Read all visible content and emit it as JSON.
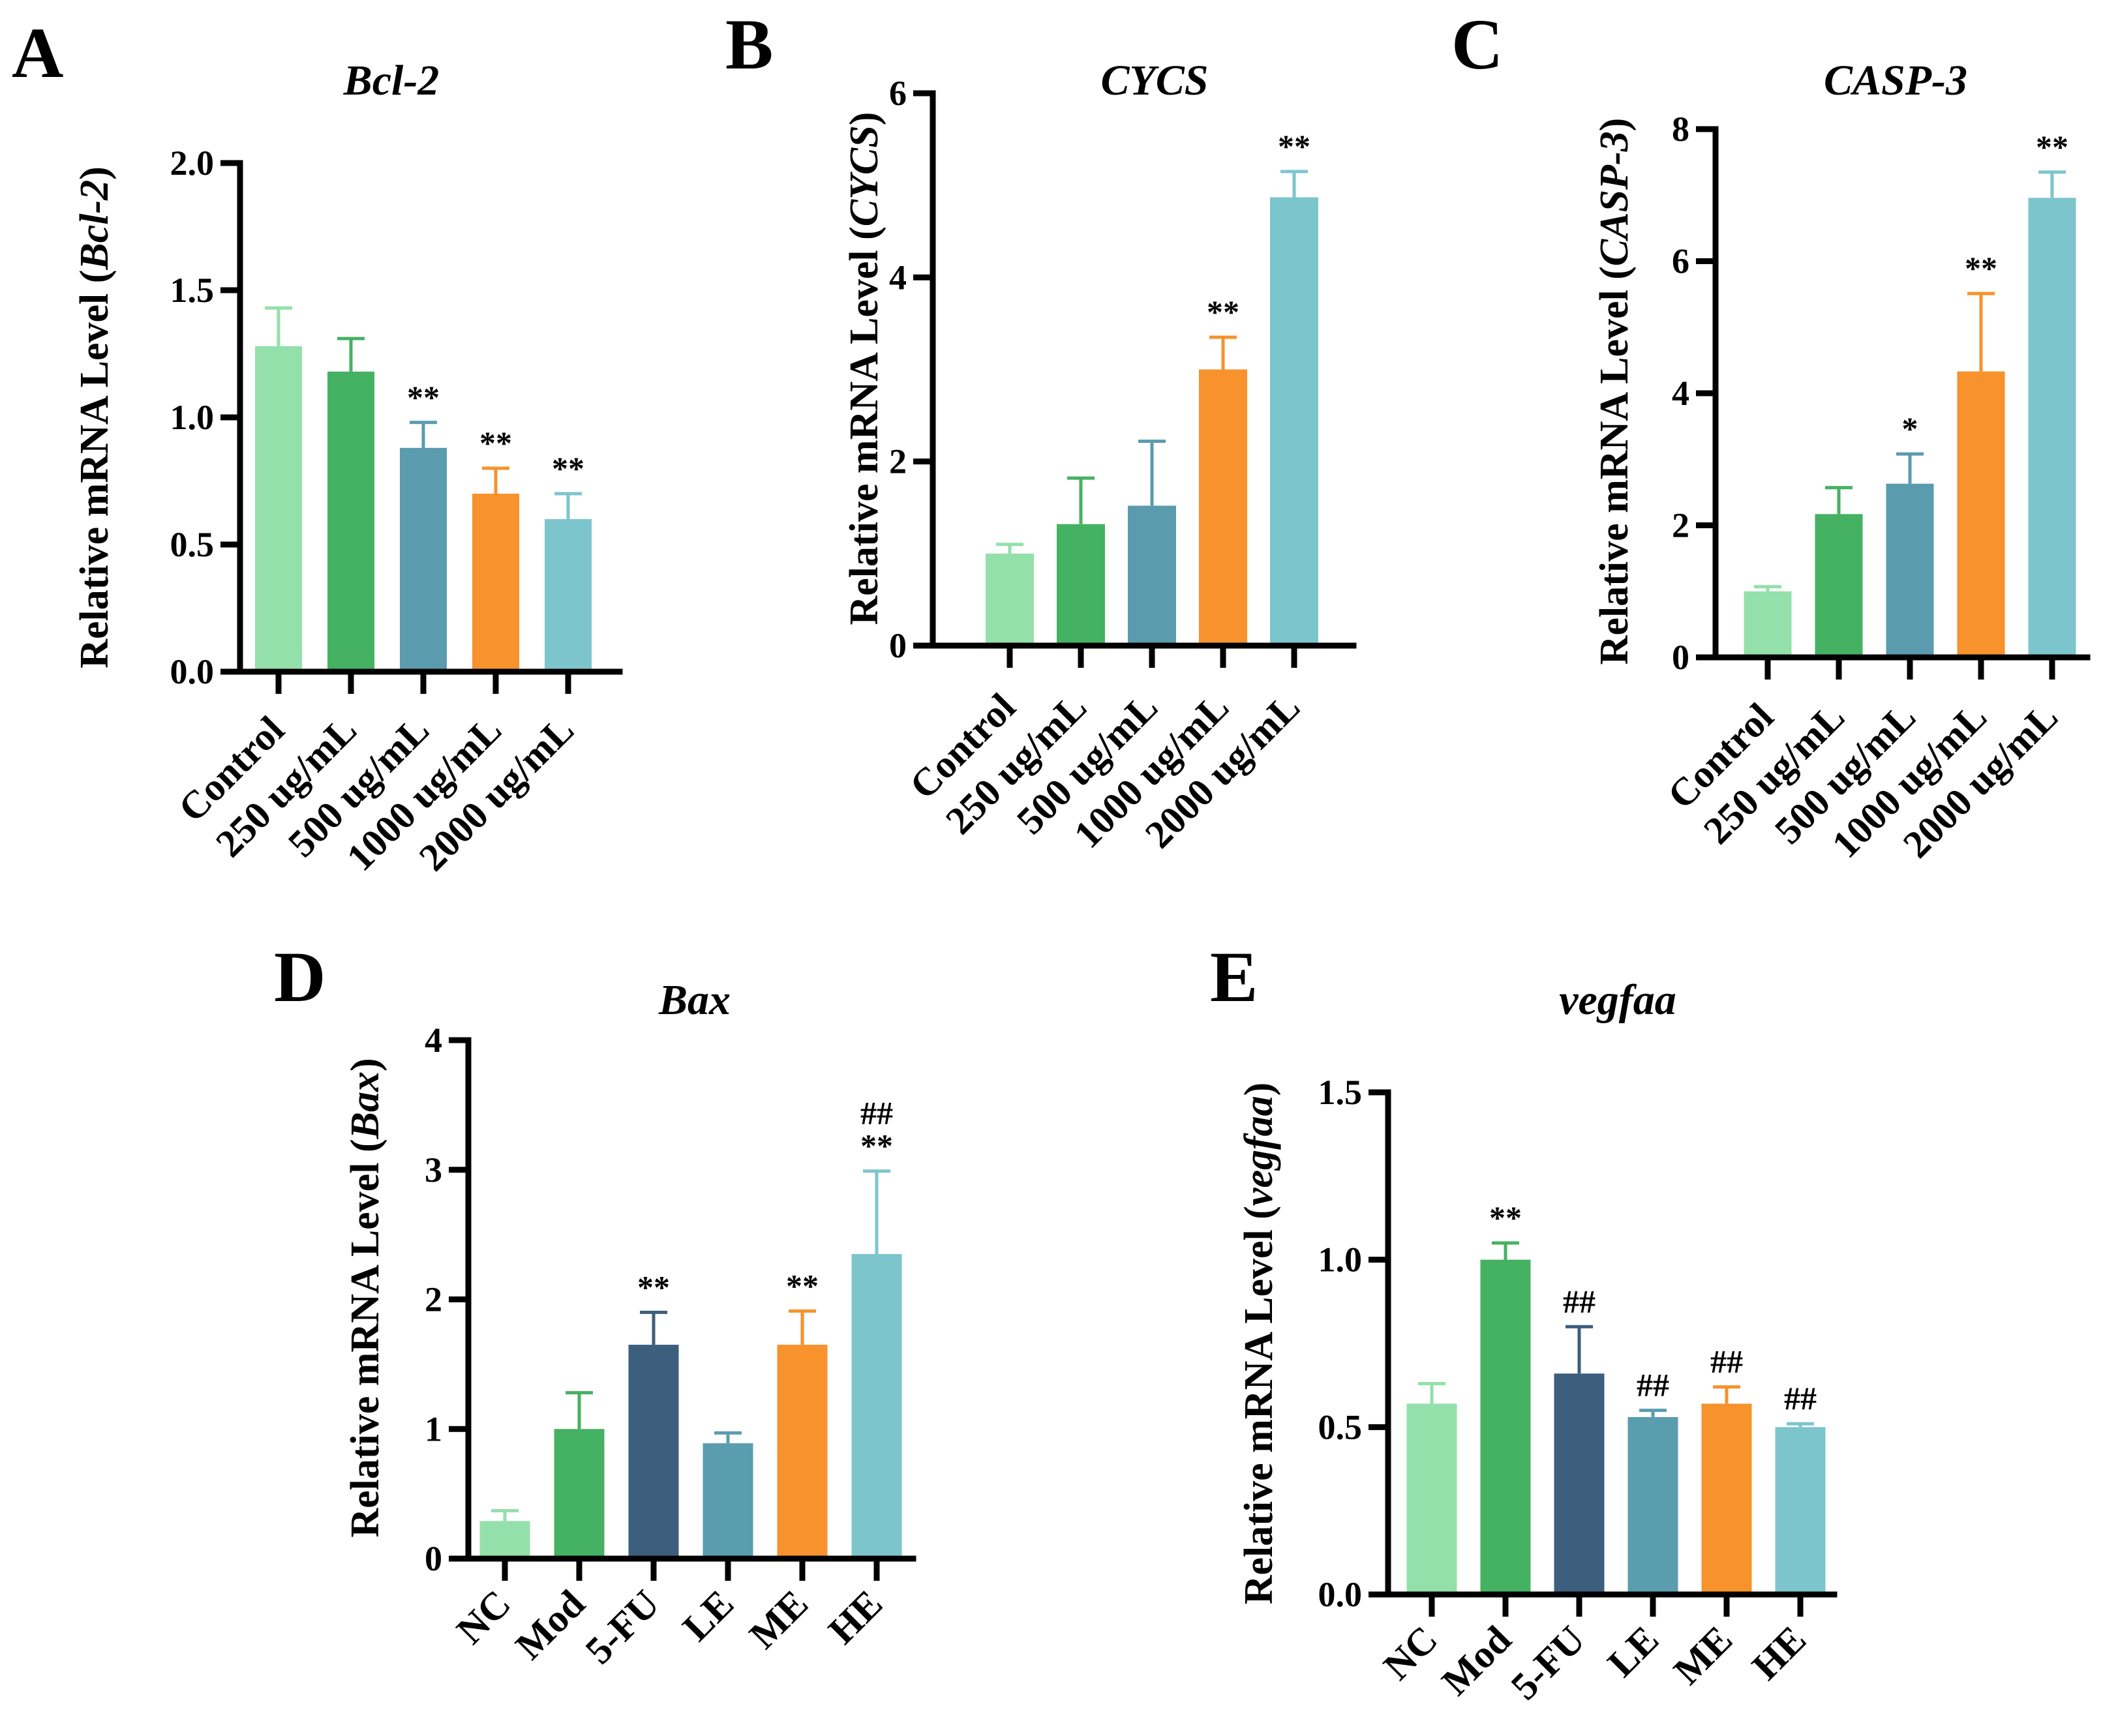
{
  "colors": {
    "lightgreen": "#94E0AA",
    "green": "#45B162",
    "teal": "#5A9BAE",
    "navy": "#3D5F7E",
    "steel": "#5A9DAF",
    "orange": "#F7922D",
    "cyan": "#7DC5CD",
    "axis": "#000000"
  },
  "chart_data": [
    {
      "panel": "A",
      "type": "bar",
      "title": "Bcl-2",
      "ylabel_prefix": "Relative mRNA Level (",
      "ylabel_gene": "Bcl-2",
      "ylabel_suffix": ")",
      "xlabel": "",
      "ylim": [
        0,
        2.0
      ],
      "yticks": [
        0.0,
        0.5,
        1.0,
        1.5,
        2.0
      ],
      "ytick_labels": [
        "0.0",
        "0.5",
        "1.0",
        "1.5",
        "2.0"
      ],
      "categories": [
        "Control",
        "250 ug/mL",
        "500 ug/mL",
        "1000 ug/mL",
        "2000 ug/mL"
      ],
      "values": [
        1.28,
        1.18,
        0.88,
        0.7,
        0.6
      ],
      "errors": [
        0.15,
        0.13,
        0.1,
        0.1,
        0.1
      ],
      "significance": [
        "",
        "",
        "**",
        "**",
        "**"
      ],
      "bar_colors": [
        "lightgreen",
        "green",
        "teal",
        "orange",
        "cyan"
      ]
    },
    {
      "panel": "B",
      "type": "bar",
      "title": "CYCS",
      "ylabel_prefix": "Relative mRNA Level (",
      "ylabel_gene": "CYCS",
      "ylabel_suffix": ")",
      "xlabel": "",
      "ylim": [
        0,
        6
      ],
      "yticks": [
        0,
        2,
        4,
        6
      ],
      "ytick_labels": [
        "0",
        "2",
        "4",
        "6"
      ],
      "categories": [
        "Control",
        "250 ug/mL",
        "500 ug/mL",
        "1000 ug/mL",
        "2000 ug/mL"
      ],
      "values": [
        1.0,
        1.32,
        1.52,
        3.0,
        4.87
      ],
      "errors": [
        0.1,
        0.5,
        0.7,
        0.35,
        0.28
      ],
      "significance": [
        "",
        "",
        "",
        "**",
        "**"
      ],
      "bar_colors": [
        "lightgreen",
        "green",
        "teal",
        "orange",
        "cyan"
      ]
    },
    {
      "panel": "C",
      "type": "bar",
      "title": "CASP-3",
      "ylabel_prefix": "Relative mRNA Level (",
      "ylabel_gene": "CASP-3",
      "ylabel_suffix": ")",
      "xlabel": "",
      "ylim": [
        0,
        8
      ],
      "yticks": [
        0,
        2,
        4,
        6,
        8
      ],
      "ytick_labels": [
        "0",
        "2",
        "4",
        "6",
        "8"
      ],
      "categories": [
        "Control",
        "250 ug/mL",
        "500 ug/mL",
        "1000 ug/mL",
        "2000 ug/mL"
      ],
      "values": [
        1.0,
        2.17,
        2.63,
        4.33,
        6.96
      ],
      "errors": [
        0.07,
        0.4,
        0.45,
        1.18,
        0.39
      ],
      "significance": [
        "",
        "",
        "*",
        "**",
        "**"
      ],
      "bar_colors": [
        "lightgreen",
        "green",
        "teal",
        "orange",
        "cyan"
      ]
    },
    {
      "panel": "D",
      "type": "bar",
      "title": "Bax",
      "ylabel_prefix": "Relative mRNA Level (",
      "ylabel_gene": "Bax",
      "ylabel_suffix": ")",
      "xlabel": "",
      "ylim": [
        0,
        4
      ],
      "yticks": [
        0,
        1,
        2,
        3,
        4
      ],
      "ytick_labels": [
        "0",
        "1",
        "2",
        "3",
        "4"
      ],
      "categories": [
        "NC",
        "Mod",
        "5-FU",
        "LE",
        "ME",
        "HE"
      ],
      "values": [
        0.29,
        1.0,
        1.65,
        0.89,
        1.65,
        2.35
      ],
      "errors": [
        0.08,
        0.28,
        0.25,
        0.08,
        0.26,
        0.64
      ],
      "significance": [
        "",
        "",
        "**",
        "",
        "**",
        "**"
      ],
      "significance2": [
        "",
        "",
        "",
        "",
        "",
        "##"
      ],
      "bar_colors": [
        "lightgreen",
        "green",
        "navy",
        "steel",
        "orange",
        "cyan"
      ]
    },
    {
      "panel": "E",
      "type": "bar",
      "title": "vegfaa",
      "ylabel_prefix": "Relative mRNA Level (",
      "ylabel_gene": "vegfaa",
      "ylabel_suffix": ")",
      "xlabel": "",
      "ylim": [
        0,
        1.5
      ],
      "yticks": [
        0.0,
        0.5,
        1.0,
        1.5
      ],
      "ytick_labels": [
        "0.0",
        "0.5",
        "1.0",
        "1.5"
      ],
      "categories": [
        "NC",
        "Mod",
        "5-FU",
        "LE",
        "ME",
        "HE"
      ],
      "values": [
        0.57,
        1.0,
        0.66,
        0.53,
        0.57,
        0.5
      ],
      "errors": [
        0.06,
        0.05,
        0.14,
        0.02,
        0.05,
        0.01
      ],
      "significance": [
        "",
        "**",
        "##",
        "##",
        "##",
        "##"
      ],
      "bar_colors": [
        "lightgreen",
        "green",
        "navy",
        "steel",
        "orange",
        "cyan"
      ]
    }
  ]
}
